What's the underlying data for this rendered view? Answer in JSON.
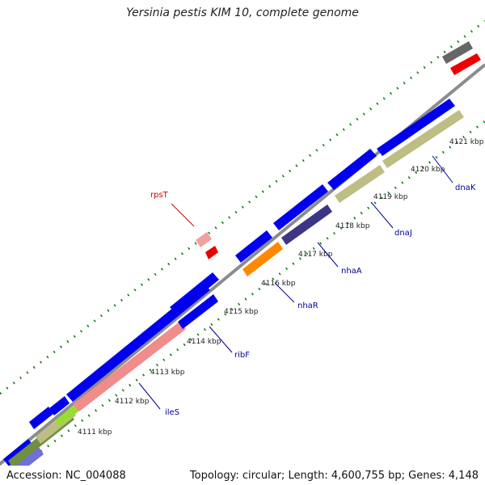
{
  "title": "Yersinia pestis KIM 10, complete genome",
  "footer": {
    "accession": "Accession: NC_004088",
    "stats": "Topology: circular; Length: 4,600,755 bp; Genes: 4,148"
  },
  "kbp_labels": [
    "4111 kbp",
    "4112 kbp",
    "4113 kbp",
    "4114 kbp",
    "4115 kbp",
    "4116 kbp",
    "4117 kbp",
    "4118 kbp",
    "4119 kbp",
    "4120 kbp",
    "4121 kbp"
  ],
  "gene_labels": {
    "rpsT": "rpsT",
    "ileS": "ileS",
    "ribF": "ribF",
    "nhaR": "nhaR",
    "nhaA": "nhaA",
    "dnaJ": "dnaJ",
    "dnaK": "dnaK"
  },
  "colors": {
    "blue": "#0000ee",
    "salmon": "#f08c8c",
    "olive": "#bdbd84",
    "orange": "#ff8800",
    "purple": "#3c3584",
    "red": "#ee0000",
    "pink": "#f0a0a0",
    "gray": "#666666",
    "green": "#007a00",
    "label_red": "#cc0000",
    "label_blue": "#000099"
  }
}
